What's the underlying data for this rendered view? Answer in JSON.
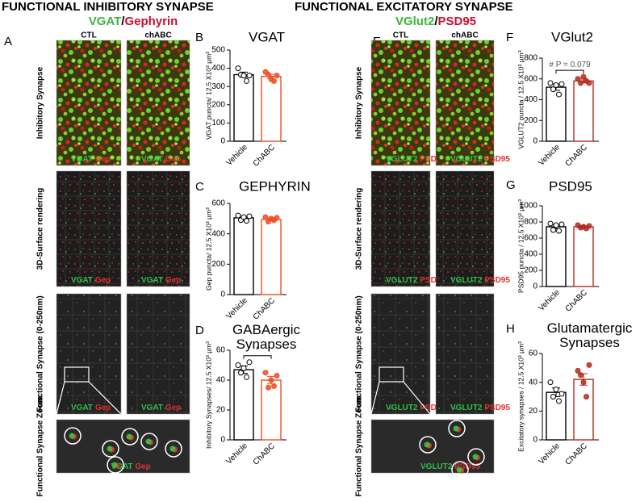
{
  "left": {
    "header": "FUNCTIONAL INHIBITORY SYNAPSE",
    "marker_green": "VGAT",
    "slash": "/",
    "marker_red": "Gephyrin",
    "panel": "A",
    "columns": [
      "CTL",
      "chABC"
    ],
    "rows": [
      "Inhibitory Synapse",
      "3D-Surface rendering",
      "Functional Synapse (0-250nm)",
      "Functional Synapse Zoom"
    ],
    "channel_green": "VGAT",
    "channel_red": "Gep"
  },
  "right": {
    "header": "FUNCTIONAL EXCITATORY SYNAPSE",
    "marker_green": "VGlut2",
    "slash": "/",
    "marker_red": "PSD95",
    "panel": "E",
    "columns": [
      "CTL",
      "chABC"
    ],
    "rows": [
      "Inhibitory Synapse",
      "3D-Surface rendering",
      "Functional Synapse (0-250nm)",
      "Functional Synapse Zoom"
    ],
    "channel_green": "VGLUT2",
    "channel_red": "PSD95"
  },
  "chart_data": [
    {
      "type": "bar",
      "panel": "B",
      "title": "VGAT",
      "ylabel": "VGAT puncta/ 12.5 X10³ µm³",
      "categories": [
        "Vehicle",
        "ChABC"
      ],
      "colors": [
        "#000000",
        "#f04e23"
      ],
      "values": [
        365,
        355
      ],
      "errors": [
        14,
        12
      ],
      "points": [
        [
          400,
          365,
          360,
          330,
          360
        ],
        [
          380,
          365,
          340,
          330,
          360
        ]
      ],
      "ylim": [
        0,
        500
      ],
      "yticks": [
        0,
        100,
        200,
        300,
        400,
        500
      ]
    },
    {
      "type": "bar",
      "panel": "C",
      "title": "GEPHYRIN",
      "ylabel": "Gep puncta/ 12.5 X10³ µm³",
      "categories": [
        "Vehicle",
        "ChABC"
      ],
      "colors": [
        "#000000",
        "#f04e23"
      ],
      "values": [
        505,
        495
      ],
      "errors": [
        10,
        9
      ],
      "points": [
        [
          520,
          490,
          510,
          485,
          515
        ],
        [
          510,
          480,
          500,
          490,
          505
        ]
      ],
      "ylim": [
        0,
        600
      ],
      "yticks": [
        0,
        200,
        400,
        600
      ]
    },
    {
      "type": "bar",
      "panel": "D",
      "title": "GABAergic Synapses",
      "ylabel": "Inhibitory Synapses/ 12.5 X10³ µm³",
      "categories": [
        "Vehicle",
        "ChABC"
      ],
      "colors": [
        "#000000",
        "#f04e23"
      ],
      "values": [
        47,
        40
      ],
      "errors": [
        2.5,
        2.5
      ],
      "points": [
        [
          50,
          45,
          48,
          42,
          52
        ],
        [
          45,
          35,
          40,
          36,
          43
        ]
      ],
      "ylim": [
        0,
        60
      ],
      "yticks": [
        0,
        20,
        40,
        60
      ],
      "annotation": "*"
    },
    {
      "type": "bar",
      "panel": "F",
      "title": "VGlut2",
      "ylabel": "VGLUT2 puncta / 12.5 X10³ µm³",
      "categories": [
        "Vehicle",
        "ChABC"
      ],
      "colors": [
        "#000000",
        "#b22d1f"
      ],
      "values": [
        520,
        580
      ],
      "errors": [
        30,
        18
      ],
      "points": [
        [
          560,
          500,
          540,
          450,
          550
        ],
        [
          600,
          560,
          620,
          580,
          560
        ]
      ],
      "ylim": [
        0,
        800
      ],
      "yticks": [
        0,
        200,
        400,
        600,
        800
      ],
      "annotation": "# P = 0.079"
    },
    {
      "type": "bar",
      "panel": "G",
      "title": "PSD95",
      "ylabel": "PSD95 puncta / 12.5 X10³ µm³",
      "categories": [
        "Vehicle",
        "ChABC"
      ],
      "colors": [
        "#000000",
        "#b22d1f"
      ],
      "values": [
        740,
        740
      ],
      "errors": [
        25,
        12
      ],
      "points": [
        [
          780,
          700,
          760,
          690,
          770
        ],
        [
          760,
          730,
          740,
          720,
          750
        ]
      ],
      "ylim": [
        0,
        1000
      ],
      "yticks": [
        0,
        200,
        400,
        600,
        800,
        1000
      ]
    },
    {
      "type": "bar",
      "panel": "H",
      "title": "Glutamatergic Synapses",
      "ylabel": "Excitatory synapses / 12.5 X10³ µm³",
      "categories": [
        "Vehicle",
        "ChABC"
      ],
      "colors": [
        "#000000",
        "#b22d1f"
      ],
      "values": [
        33,
        42
      ],
      "errors": [
        3,
        4
      ],
      "points": [
        [
          40,
          30,
          35,
          27,
          32
        ],
        [
          48,
          45,
          40,
          30,
          52
        ]
      ],
      "ylim": [
        0,
        60
      ],
      "yticks": [
        0,
        20,
        40,
        60
      ]
    }
  ]
}
